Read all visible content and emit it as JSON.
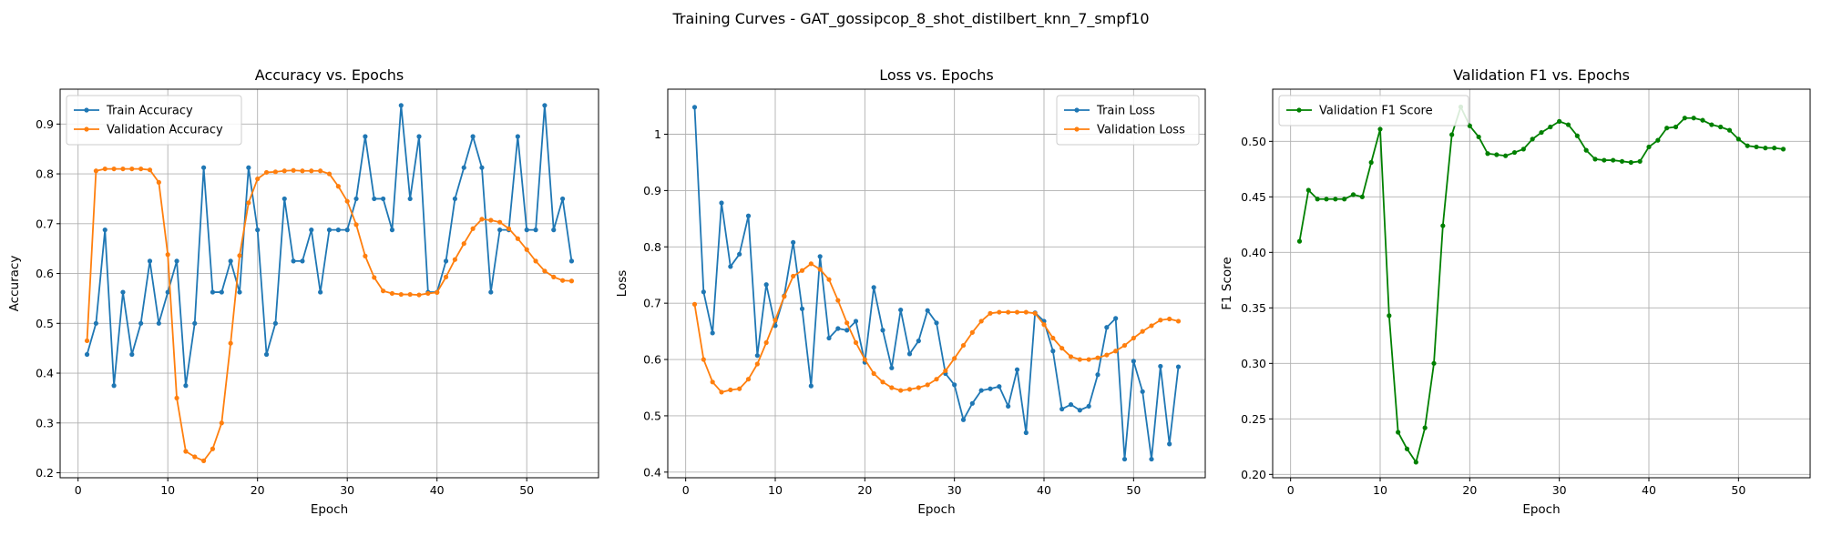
{
  "figure": {
    "suptitle": "Training Curves - GAT_gossipcop_8_shot_distilbert_knn_7_smpf10"
  },
  "colors": {
    "blue": "#1f77b4",
    "orange": "#ff7f0e",
    "green": "#008000",
    "grid": "#b0b0b0"
  },
  "chart_data": [
    {
      "type": "line",
      "title": "Accuracy vs. Epochs",
      "xlabel": "Epoch",
      "ylabel": "Accuracy",
      "xlim": [
        -2,
        58
      ],
      "ylim": [
        0.19,
        0.97
      ],
      "xticks": [
        0,
        10,
        20,
        30,
        40,
        50
      ],
      "yticks": [
        0.2,
        0.3,
        0.4,
        0.5,
        0.6,
        0.7,
        0.8,
        0.9
      ],
      "grid": true,
      "legend_position": "top-left",
      "x": [
        1,
        2,
        3,
        4,
        5,
        6,
        7,
        8,
        9,
        10,
        11,
        12,
        13,
        14,
        15,
        16,
        17,
        18,
        19,
        20,
        21,
        22,
        23,
        24,
        25,
        26,
        27,
        28,
        29,
        30,
        31,
        32,
        33,
        34,
        35,
        36,
        37,
        38,
        39,
        40,
        41,
        42,
        43,
        44,
        45,
        46,
        47,
        48,
        49,
        50,
        51,
        52,
        53,
        54,
        55
      ],
      "series": [
        {
          "name": "Train Accuracy",
          "color": "#1f77b4",
          "values": [
            0.4375,
            0.5,
            0.6875,
            0.375,
            0.5625,
            0.4375,
            0.5,
            0.625,
            0.5,
            0.5625,
            0.625,
            0.375,
            0.5,
            0.8125,
            0.5625,
            0.5625,
            0.625,
            0.5625,
            0.8125,
            0.6875,
            0.4375,
            0.5,
            0.75,
            0.625,
            0.625,
            0.6875,
            0.5625,
            0.6875,
            0.6875,
            0.6875,
            0.75,
            0.875,
            0.75,
            0.75,
            0.6875,
            0.9375,
            0.75,
            0.875,
            0.5625,
            0.5625,
            0.625,
            0.75,
            0.8125,
            0.875,
            0.8125,
            0.5625,
            0.6875,
            0.6875,
            0.875,
            0.6875,
            0.6875,
            0.9375,
            0.6875,
            0.75,
            0.625
          ]
        },
        {
          "name": "Validation Accuracy",
          "color": "#ff7f0e",
          "values": [
            0.465,
            0.806,
            0.81,
            0.81,
            0.81,
            0.81,
            0.81,
            0.808,
            0.783,
            0.638,
            0.35,
            0.243,
            0.232,
            0.224,
            0.248,
            0.3,
            0.46,
            0.636,
            0.742,
            0.79,
            0.803,
            0.804,
            0.806,
            0.807,
            0.806,
            0.806,
            0.806,
            0.8,
            0.775,
            0.745,
            0.698,
            0.635,
            0.592,
            0.565,
            0.56,
            0.558,
            0.558,
            0.557,
            0.56,
            0.562,
            0.593,
            0.628,
            0.66,
            0.69,
            0.709,
            0.707,
            0.703,
            0.69,
            0.67,
            0.648,
            0.625,
            0.605,
            0.593,
            0.586,
            0.585
          ]
        }
      ]
    },
    {
      "type": "line",
      "title": "Loss vs. Epochs",
      "xlabel": "Epoch",
      "ylabel": "Loss",
      "xlim": [
        -2,
        58
      ],
      "ylim": [
        0.39,
        1.08
      ],
      "xticks": [
        0,
        10,
        20,
        30,
        40,
        50
      ],
      "yticks": [
        0.4,
        0.5,
        0.6,
        0.7,
        0.8,
        0.9,
        1.0
      ],
      "grid": true,
      "legend_position": "top-right",
      "x": [
        1,
        2,
        3,
        4,
        5,
        6,
        7,
        8,
        9,
        10,
        11,
        12,
        13,
        14,
        15,
        16,
        17,
        18,
        19,
        20,
        21,
        22,
        23,
        24,
        25,
        26,
        27,
        28,
        29,
        30,
        31,
        32,
        33,
        34,
        35,
        36,
        37,
        38,
        39,
        40,
        41,
        42,
        43,
        44,
        45,
        46,
        47,
        48,
        49,
        50,
        51,
        52,
        53,
        54,
        55
      ],
      "series": [
        {
          "name": "Train Loss",
          "color": "#1f77b4",
          "values": [
            1.048,
            0.72,
            0.647,
            0.878,
            0.765,
            0.787,
            0.855,
            0.607,
            0.733,
            0.66,
            0.713,
            0.808,
            0.69,
            0.553,
            0.783,
            0.638,
            0.655,
            0.652,
            0.668,
            0.595,
            0.728,
            0.652,
            0.585,
            0.688,
            0.61,
            0.633,
            0.687,
            0.665,
            0.575,
            0.555,
            0.493,
            0.522,
            0.545,
            0.548,
            0.552,
            0.517,
            0.582,
            0.47,
            0.683,
            0.668,
            0.615,
            0.512,
            0.52,
            0.51,
            0.517,
            0.573,
            0.657,
            0.673,
            0.423,
            0.597,
            0.543,
            0.423,
            0.588,
            0.45,
            0.587
          ]
        },
        {
          "name": "Validation Loss",
          "color": "#ff7f0e",
          "values": [
            0.698,
            0.6,
            0.56,
            0.542,
            0.546,
            0.548,
            0.565,
            0.592,
            0.63,
            0.67,
            0.712,
            0.748,
            0.758,
            0.77,
            0.76,
            0.742,
            0.705,
            0.665,
            0.63,
            0.6,
            0.575,
            0.56,
            0.55,
            0.545,
            0.547,
            0.55,
            0.555,
            0.565,
            0.58,
            0.602,
            0.625,
            0.648,
            0.668,
            0.682,
            0.684,
            0.684,
            0.684,
            0.684,
            0.682,
            0.662,
            0.638,
            0.62,
            0.605,
            0.6,
            0.6,
            0.603,
            0.608,
            0.615,
            0.625,
            0.638,
            0.65,
            0.66,
            0.67,
            0.672,
            0.668
          ]
        }
      ]
    },
    {
      "type": "line",
      "title": "Validation F1 vs. Epochs",
      "xlabel": "Epoch",
      "ylabel": "F1 Score",
      "xlim": [
        -2,
        58
      ],
      "ylim": [
        0.197,
        0.547
      ],
      "xticks": [
        0,
        10,
        20,
        30,
        40,
        50
      ],
      "yticks": [
        0.2,
        0.25,
        0.3,
        0.35,
        0.4,
        0.45,
        0.5
      ],
      "ytick_labels": [
        "0.20",
        "0.25",
        "0.30",
        "0.35",
        "0.40",
        "0.45",
        "0.50"
      ],
      "grid": true,
      "legend_position": "top-left",
      "x": [
        1,
        2,
        3,
        4,
        5,
        6,
        7,
        8,
        9,
        10,
        11,
        12,
        13,
        14,
        15,
        16,
        17,
        18,
        19,
        20,
        21,
        22,
        23,
        24,
        25,
        26,
        27,
        28,
        29,
        30,
        31,
        32,
        33,
        34,
        35,
        36,
        37,
        38,
        39,
        40,
        41,
        42,
        43,
        44,
        45,
        46,
        47,
        48,
        49,
        50,
        51,
        52,
        53,
        54,
        55
      ],
      "series": [
        {
          "name": "Validation F1 Score",
          "color": "#008000",
          "values": [
            0.41,
            0.456,
            0.448,
            0.448,
            0.448,
            0.448,
            0.452,
            0.45,
            0.481,
            0.511,
            0.343,
            0.238,
            0.223,
            0.211,
            0.242,
            0.3,
            0.424,
            0.506,
            0.531,
            0.514,
            0.504,
            0.489,
            0.488,
            0.487,
            0.49,
            0.493,
            0.502,
            0.508,
            0.513,
            0.518,
            0.515,
            0.505,
            0.492,
            0.484,
            0.483,
            0.483,
            0.482,
            0.481,
            0.482,
            0.495,
            0.501,
            0.512,
            0.513,
            0.521,
            0.521,
            0.519,
            0.515,
            0.513,
            0.51,
            0.502,
            0.496,
            0.495,
            0.494,
            0.494,
            0.493
          ]
        }
      ]
    }
  ]
}
